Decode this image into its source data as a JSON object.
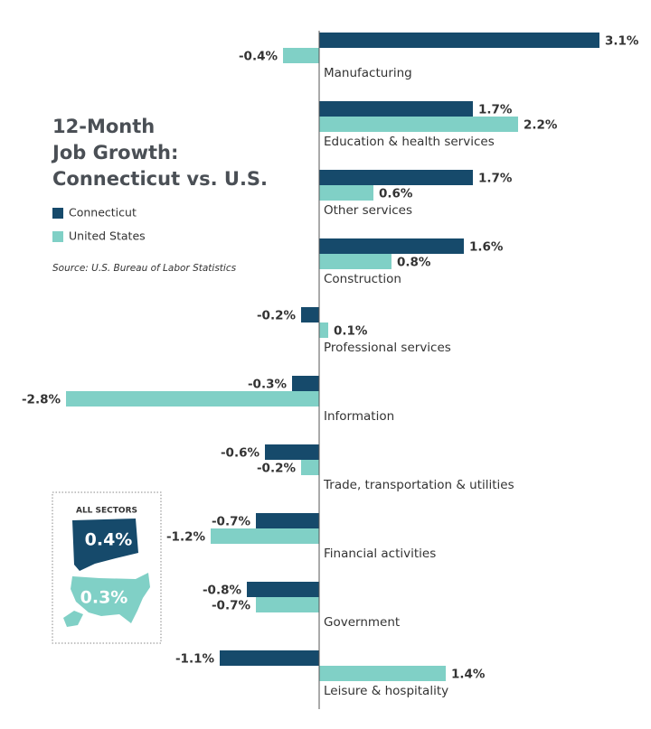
{
  "chart_data": {
    "type": "bar",
    "orientation": "horizontal",
    "title": [
      "12-Month",
      "Job Growth:",
      "Connecticut vs. U.S."
    ],
    "source": "Source: U.S. Bureau of Labor Statistics",
    "categories": [
      "Manufacturing",
      "Education & health services",
      "Other services",
      "Construction",
      "Professional services",
      "Information",
      "Trade, transportation & utilities",
      "Financial activities",
      "Government",
      "Leisure & hospitality"
    ],
    "series": [
      {
        "name": "Connecticut",
        "color": "#164a6b",
        "values": [
          3.1,
          1.7,
          1.7,
          1.6,
          -0.2,
          -0.3,
          -0.6,
          -0.7,
          -0.8,
          -1.1
        ],
        "value_labels": [
          "3.1%",
          "1.7%",
          "1.7%",
          "1.6%",
          "-0.2%",
          "-0.3%",
          "-0.6%",
          "-0.7%",
          "-0.8%",
          "-1.1%"
        ]
      },
      {
        "name": "United States",
        "color": "#80d0c6",
        "values": [
          -0.4,
          2.2,
          0.6,
          0.8,
          0.1,
          -2.8,
          -0.2,
          -1.2,
          -0.7,
          1.4
        ],
        "value_labels": [
          "-0.4%",
          "2.2%",
          "0.6%",
          "0.8%",
          "0.1%",
          "-2.8%",
          "-0.2%",
          "-1.2%",
          "-0.7%",
          "1.4%"
        ]
      }
    ],
    "summary": {
      "title": "ALL SECTORS",
      "values": [
        0.4,
        0.3
      ],
      "value_labels": [
        "0.4%",
        "0.3%"
      ]
    }
  }
}
